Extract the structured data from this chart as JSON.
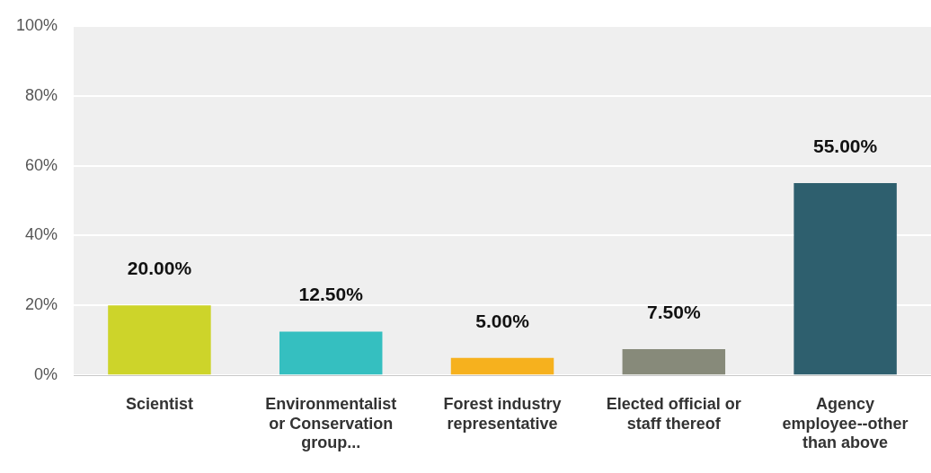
{
  "chart_data": {
    "type": "bar",
    "categories": [
      "Scientist",
      "Environmentalist or Conservation group...",
      "Forest industry representative",
      "Elected official or staff thereof",
      "Agency employee--other than above"
    ],
    "values": [
      20,
      12.5,
      5,
      7.5,
      55
    ],
    "colors": [
      "#cdd42a",
      "#35bfc0",
      "#f6b11e",
      "#878a7a",
      "#2e5f6e"
    ],
    "value_labels": [
      "20.00%",
      "12.50%",
      "5.00%",
      "7.50%",
      "55.00%"
    ],
    "ylim": [
      0,
      100
    ],
    "yticks": [
      {
        "value": 0,
        "label": "0%"
      },
      {
        "value": 20,
        "label": "20%"
      },
      {
        "value": 40,
        "label": "40%"
      },
      {
        "value": 60,
        "label": "60%"
      },
      {
        "value": 80,
        "label": "80%"
      },
      {
        "value": 100,
        "label": "100%"
      }
    ],
    "grid": "y",
    "legend": false
  }
}
